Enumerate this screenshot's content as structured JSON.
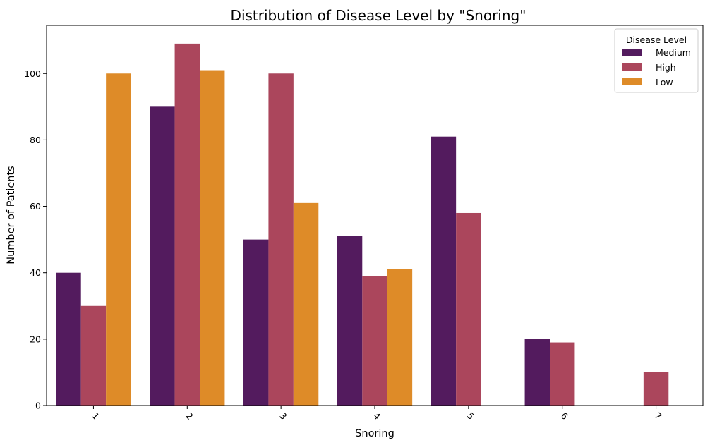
{
  "chart_data": {
    "type": "bar",
    "title": "Distribution of Disease Level by \"Snoring\"",
    "xlabel": "Snoring",
    "ylabel": "Number of Patients",
    "categories": [
      "1",
      "2",
      "3",
      "4",
      "5",
      "6",
      "7"
    ],
    "series": [
      {
        "name": "Medium",
        "color": "#531b5e",
        "values": [
          40,
          90,
          50,
          51,
          81,
          20,
          0
        ]
      },
      {
        "name": "High",
        "color": "#ab465c",
        "values": [
          30,
          109,
          100,
          39,
          58,
          19,
          10
        ]
      },
      {
        "name": "Low",
        "color": "#de8b28",
        "values": [
          100,
          101,
          61,
          41,
          0,
          0,
          0
        ]
      }
    ],
    "ylim": [
      0,
      114.5
    ],
    "yticks": [
      0,
      20,
      40,
      60,
      80,
      100
    ],
    "grid": false,
    "legend": {
      "title": "Disease Level",
      "placement": "top-right"
    }
  }
}
